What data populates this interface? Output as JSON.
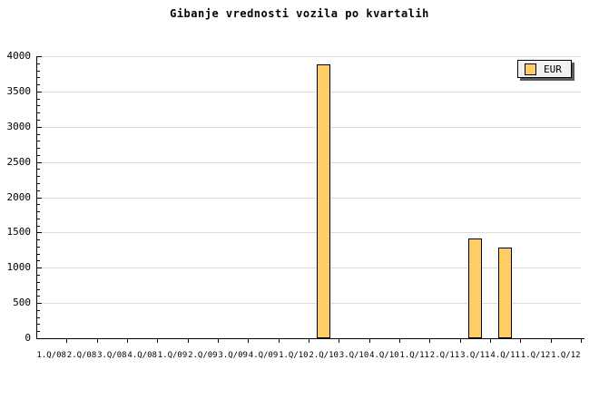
{
  "title": "Gibanje vrednosti vozila po kvartalih",
  "legend": {
    "label": "EUR",
    "swatch_color": "#FFCC66"
  },
  "colors": {
    "background": "#FFFFFF",
    "bar_fill": "#FFCC66",
    "bar_border": "#000000",
    "grid": "#DCDCDC",
    "axis": "#000000",
    "text": "#000000",
    "legend_bg": "#F1F1F1",
    "legend_border": "#000000",
    "legend_shadow": "#5A5A5A"
  },
  "chart_data": {
    "type": "bar",
    "title": "Gibanje vrednosti vozila po kvartalih",
    "categories": [
      "1.Q/08",
      "2.Q/08",
      "3.Q/08",
      "4.Q/08",
      "1.Q/09",
      "2.Q/09",
      "3.Q/09",
      "4.Q/09",
      "1.Q/10",
      "2.Q/10",
      "3.Q/10",
      "4.Q/10",
      "1.Q/11",
      "2.Q/11",
      "3.Q/11",
      "4.Q/11",
      "1.Q/12",
      "1.Q/12"
    ],
    "series": [
      {
        "name": "EUR",
        "values": [
          null,
          null,
          null,
          null,
          null,
          null,
          null,
          null,
          null,
          3890,
          null,
          null,
          null,
          null,
          1420,
          1280,
          null,
          null
        ]
      }
    ],
    "xlabel": "",
    "ylabel": "",
    "ylim": [
      0,
      4000
    ],
    "ytick_major": 500,
    "ytick_minor": 100,
    "grid": "horizontal-major",
    "legend_position": "top-right"
  }
}
